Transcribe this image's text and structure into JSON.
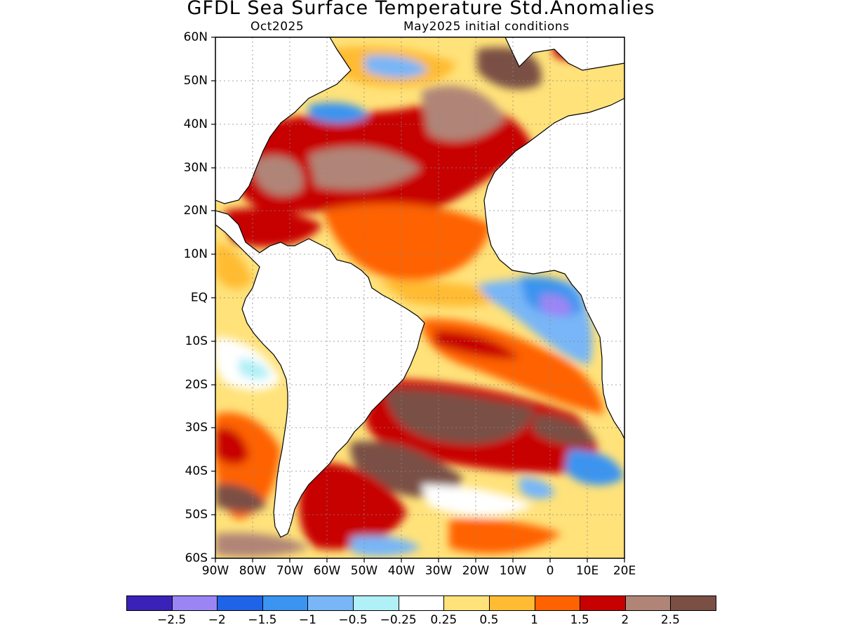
{
  "header": {
    "title": "GFDL Sea Surface Temperature Std.Anomalies",
    "valid_month": "Oct2025",
    "init": "May2025 initial conditions"
  },
  "axes": {
    "lat_labels": [
      "60N",
      "50N",
      "40N",
      "30N",
      "20N",
      "10N",
      "EQ",
      "10S",
      "20S",
      "30S",
      "40S",
      "50S",
      "60S"
    ],
    "lon_labels": [
      "90W",
      "80W",
      "70W",
      "60W",
      "50W",
      "40W",
      "30W",
      "20W",
      "10W",
      "0",
      "10E",
      "20E"
    ],
    "lat_range": [
      -60,
      60
    ],
    "lon_range": [
      -90,
      20
    ],
    "grid": "dotted"
  },
  "colorbar": {
    "colors": [
      "#3a22b8",
      "#9b85f5",
      "#1f63e6",
      "#3b94f0",
      "#78b6f7",
      "#b0f0f7",
      "#ffffff",
      "#ffe27a",
      "#ffbb33",
      "#ff6200",
      "#c70000",
      "#b08577",
      "#7a5045"
    ],
    "labels": [
      "−2.5",
      "−2",
      "−1.5",
      "−1",
      "−0.5",
      "−0.25",
      "0.25",
      "0.5",
      "1",
      "1.5",
      "2",
      "2.5"
    ],
    "boundaries": [
      -2.5,
      -2,
      -1.5,
      -1,
      -0.5,
      -0.25,
      0.25,
      0.5,
      1,
      1.5,
      2,
      2.5
    ]
  },
  "anomaly_regions": [
    {
      "lon": -60,
      "lat": 30,
      "level": 2.5
    },
    {
      "lon": -45,
      "lat": 35,
      "level": 2.0
    },
    {
      "lon": -30,
      "lat": 45,
      "level": 2.5
    },
    {
      "lon": -10,
      "lat": 45,
      "level": 2.5
    },
    {
      "lon": -50,
      "lat": 50,
      "level": -1.0
    },
    {
      "lon": -60,
      "lat": 42,
      "level": -1.5
    },
    {
      "lon": -35,
      "lat": 15,
      "level": 1.5
    },
    {
      "lon": -20,
      "lat": 5,
      "level": 1.0
    },
    {
      "lon": 5,
      "lat": -2,
      "level": -1.5
    },
    {
      "lon": 7,
      "lat": -2,
      "level": -2.0
    },
    {
      "lon": -20,
      "lat": -10,
      "level": 1.5
    },
    {
      "lon": -20,
      "lat": -28,
      "level": 2.5
    },
    {
      "lon": -5,
      "lat": -30,
      "level": 2.0
    },
    {
      "lon": -30,
      "lat": -40,
      "level": 2.5
    },
    {
      "lon": 12,
      "lat": -42,
      "level": -1.0
    },
    {
      "lon": -85,
      "lat": -35,
      "level": 1.5
    },
    {
      "lon": -85,
      "lat": -15,
      "level": -0.25
    },
    {
      "lon": -10,
      "lat": -52,
      "level": 0.5
    }
  ]
}
